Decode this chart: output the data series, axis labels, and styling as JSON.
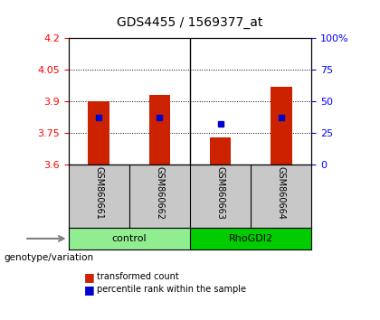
{
  "title": "GDS4455 / 1569377_at",
  "samples": [
    "GSM860661",
    "GSM860662",
    "GSM860663",
    "GSM860664"
  ],
  "groups": [
    "control",
    "control",
    "RhoGDI2",
    "RhoGDI2"
  ],
  "group_colors": {
    "control": "#90EE90",
    "RhoGDI2": "#00CC00"
  },
  "bar_bottom": 3.6,
  "bar_tops": [
    3.9,
    3.93,
    3.73,
    3.97
  ],
  "percentile_values": [
    3.825,
    3.825,
    3.795,
    3.825
  ],
  "ylim_left": [
    3.6,
    4.2
  ],
  "ylim_right": [
    0,
    100
  ],
  "yticks_left": [
    3.6,
    3.75,
    3.9,
    4.05,
    4.2
  ],
  "yticks_right": [
    0,
    25,
    50,
    75,
    100
  ],
  "ytick_labels_left": [
    "3.6",
    "3.75",
    "3.9",
    "4.05",
    "4.2"
  ],
  "ytick_labels_right": [
    "0",
    "25",
    "50",
    "75",
    "100%"
  ],
  "bar_color": "#CC2200",
  "marker_color": "#0000CC",
  "bg_color": "#FFFFFF",
  "plot_bg": "#FFFFFF",
  "legend_red_label": "transformed count",
  "legend_blue_label": "percentile rank within the sample",
  "genotype_label": "genotype/variation"
}
